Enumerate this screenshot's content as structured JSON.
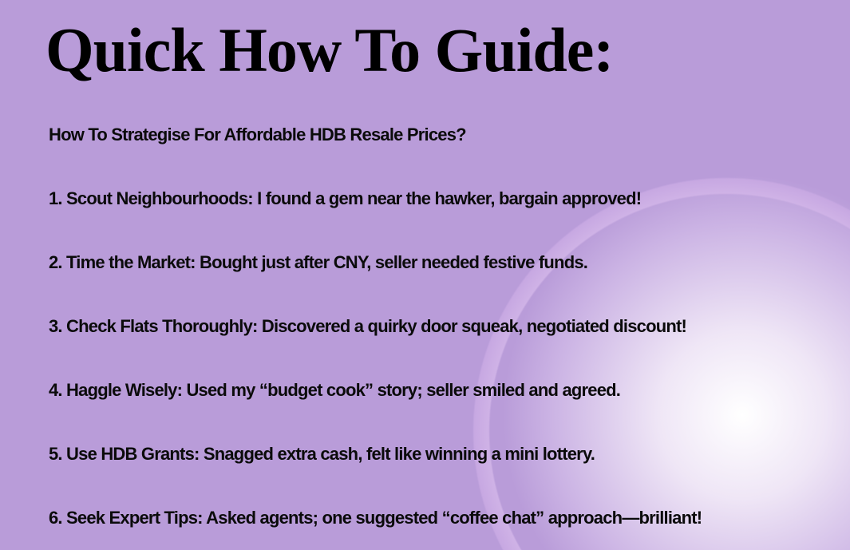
{
  "title": "Quick How To Guide:",
  "subtitle": "How To Strategise For Affordable HDB Resale Prices?",
  "items": [
    "1. Scout Neighbourhoods: I found a gem near the hawker, bargain approved!",
    "2. Time the Market: Bought just after CNY, seller needed festive funds.",
    "3. Check Flats Thoroughly: Discovered a quirky door squeak, negotiated discount!",
    "4. Haggle Wisely: Used my “budget cook” story; seller smiled and agreed.",
    "5. Use HDB Grants: Snagged extra cash, felt like winning a mini lottery.",
    "6. Seek Expert Tips: Asked agents; one suggested “coffee chat” approach—brilliant!"
  ],
  "colors": {
    "text": "#0b0b0b",
    "peach": "#e9cfc8",
    "purple": "#cbb3e4",
    "background": "#d9e9ef"
  }
}
